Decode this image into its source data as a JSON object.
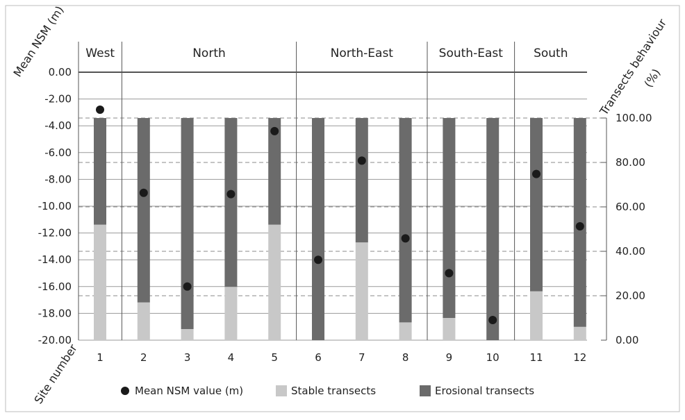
{
  "chart_data": {
    "type": "bar",
    "y_left_label": "Mean NSM (m)",
    "y_right_label_lines": [
      "Transects behaviour",
      "(%)"
    ],
    "x_label": "Site number",
    "y_left_ticks": [
      "0.00",
      "-2.00",
      "-4.00",
      "-6.00",
      "-8.00",
      "-10.00",
      "-12.00",
      "-14.00",
      "-16.00",
      "-18.00",
      "-20.00"
    ],
    "y_left_range": [
      -20,
      0
    ],
    "y_right_ticks": [
      "100.00",
      "80.00",
      "60.00",
      "40.00",
      "20.00",
      "0.00"
    ],
    "y_right_range": [
      0,
      100
    ],
    "regions": [
      {
        "name": "West",
        "sites": [
          1
        ]
      },
      {
        "name": "North",
        "sites": [
          2,
          3,
          4,
          5
        ]
      },
      {
        "name": "North-East",
        "sites": [
          6,
          7,
          8
        ]
      },
      {
        "name": "South-East",
        "sites": [
          9,
          10
        ]
      },
      {
        "name": "South",
        "sites": [
          11,
          12
        ]
      }
    ],
    "categories": [
      "1",
      "2",
      "3",
      "4",
      "5",
      "6",
      "7",
      "8",
      "9",
      "10",
      "11",
      "12"
    ],
    "series": [
      {
        "name": "Stable transects",
        "axis": "right",
        "color": "#c8c8c8",
        "values": [
          52,
          17,
          5,
          24,
          52,
          0,
          44,
          8,
          10,
          0,
          22,
          6
        ]
      },
      {
        "name": "Erosional transects",
        "axis": "right",
        "color": "#6b6b6b",
        "values": [
          48,
          83,
          95,
          76,
          48,
          100,
          56,
          92,
          90,
          100,
          78,
          94
        ]
      },
      {
        "name": "Mean NSM value (m)",
        "axis": "left",
        "color": "#1a1a1a",
        "values": [
          -2.8,
          -9.0,
          -16.0,
          -9.1,
          -4.4,
          -14.0,
          -6.6,
          -12.4,
          -15.0,
          -18.5,
          -7.6,
          -11.5
        ]
      }
    ],
    "legend": {
      "position": "bottom",
      "items": [
        {
          "label": "Mean NSM value (m)",
          "marker": "dot",
          "color": "#1a1a1a"
        },
        {
          "label": "Stable transects",
          "marker": "square",
          "color": "#c8c8c8"
        },
        {
          "label": "Erosional transects",
          "marker": "square",
          "color": "#6b6b6b"
        }
      ]
    },
    "grid": true
  }
}
